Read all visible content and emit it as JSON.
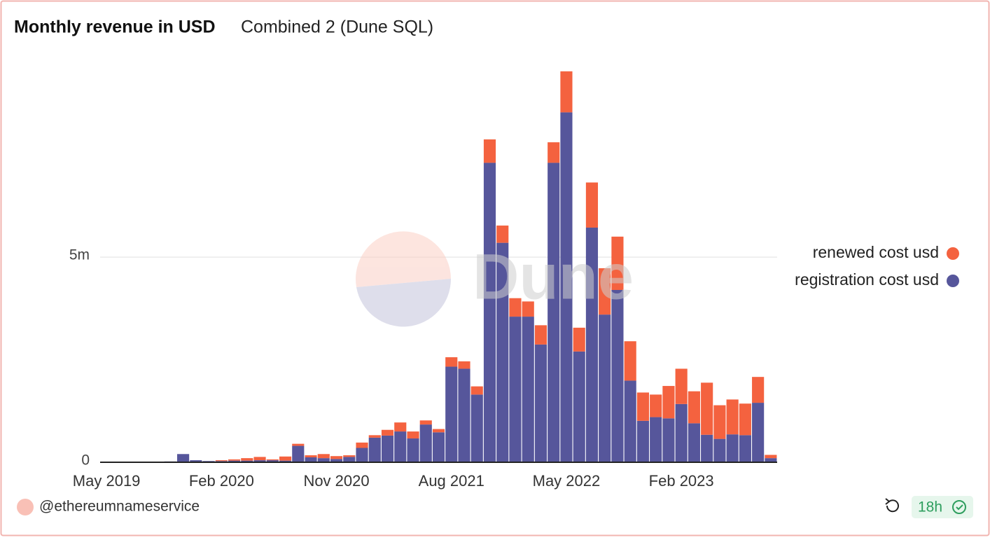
{
  "chart_data": {
    "type": "bar",
    "stacked": true,
    "title": "Monthly revenue in USD",
    "subtitle": "Combined 2 (Dune SQL)",
    "categories": [
      "May 2019",
      null,
      null,
      null,
      null,
      null,
      null,
      null,
      null,
      "Feb 2020",
      null,
      null,
      null,
      null,
      null,
      null,
      null,
      null,
      "Nov 2020",
      null,
      null,
      null,
      null,
      null,
      null,
      null,
      null,
      "Aug 2021",
      null,
      null,
      null,
      null,
      null,
      null,
      null,
      null,
      "May 2022",
      null,
      null,
      null,
      null,
      null,
      null,
      null,
      null,
      "Feb 2023",
      null,
      null,
      null,
      null,
      null,
      null,
      null
    ],
    "series": [
      {
        "name": "registration cost usd",
        "color": "#56569b",
        "values": [
          10000,
          10000,
          10000,
          10000,
          10000,
          20000,
          200000,
          50000,
          30000,
          30000,
          40000,
          40000,
          50000,
          50000,
          40000,
          400000,
          120000,
          100000,
          80000,
          130000,
          350000,
          600000,
          650000,
          750000,
          580000,
          920000,
          730000,
          2330000,
          2280000,
          1650000,
          7300000,
          5350000,
          3550000,
          3550000,
          2870000,
          7300000,
          8530000,
          2700000,
          5720000,
          3600000,
          4200000,
          1990000,
          1010000,
          1100000,
          1070000,
          1420000,
          950000,
          670000,
          570000,
          680000,
          660000,
          1450000,
          100000
        ]
      },
      {
        "name": "renewed cost usd",
        "color": "#f4623f",
        "values": [
          0,
          0,
          0,
          0,
          0,
          0,
          0,
          0,
          0,
          20000,
          30000,
          60000,
          80000,
          20000,
          100000,
          50000,
          50000,
          100000,
          70000,
          40000,
          130000,
          60000,
          140000,
          220000,
          170000,
          100000,
          80000,
          230000,
          180000,
          200000,
          570000,
          420000,
          450000,
          370000,
          470000,
          500000,
          1000000,
          580000,
          1100000,
          1130000,
          1300000,
          960000,
          690000,
          550000,
          790000,
          860000,
          780000,
          1270000,
          820000,
          850000,
          770000,
          630000,
          80000
        ]
      }
    ],
    "ylim": [
      0,
      9800000
    ],
    "yticks": [
      0,
      {
        "value": 5000000,
        "label": "5m"
      }
    ],
    "grid": true,
    "legend": "right"
  },
  "watermark": "Dune",
  "footer": {
    "author": "@ethereumnameservice",
    "age": "18h"
  }
}
